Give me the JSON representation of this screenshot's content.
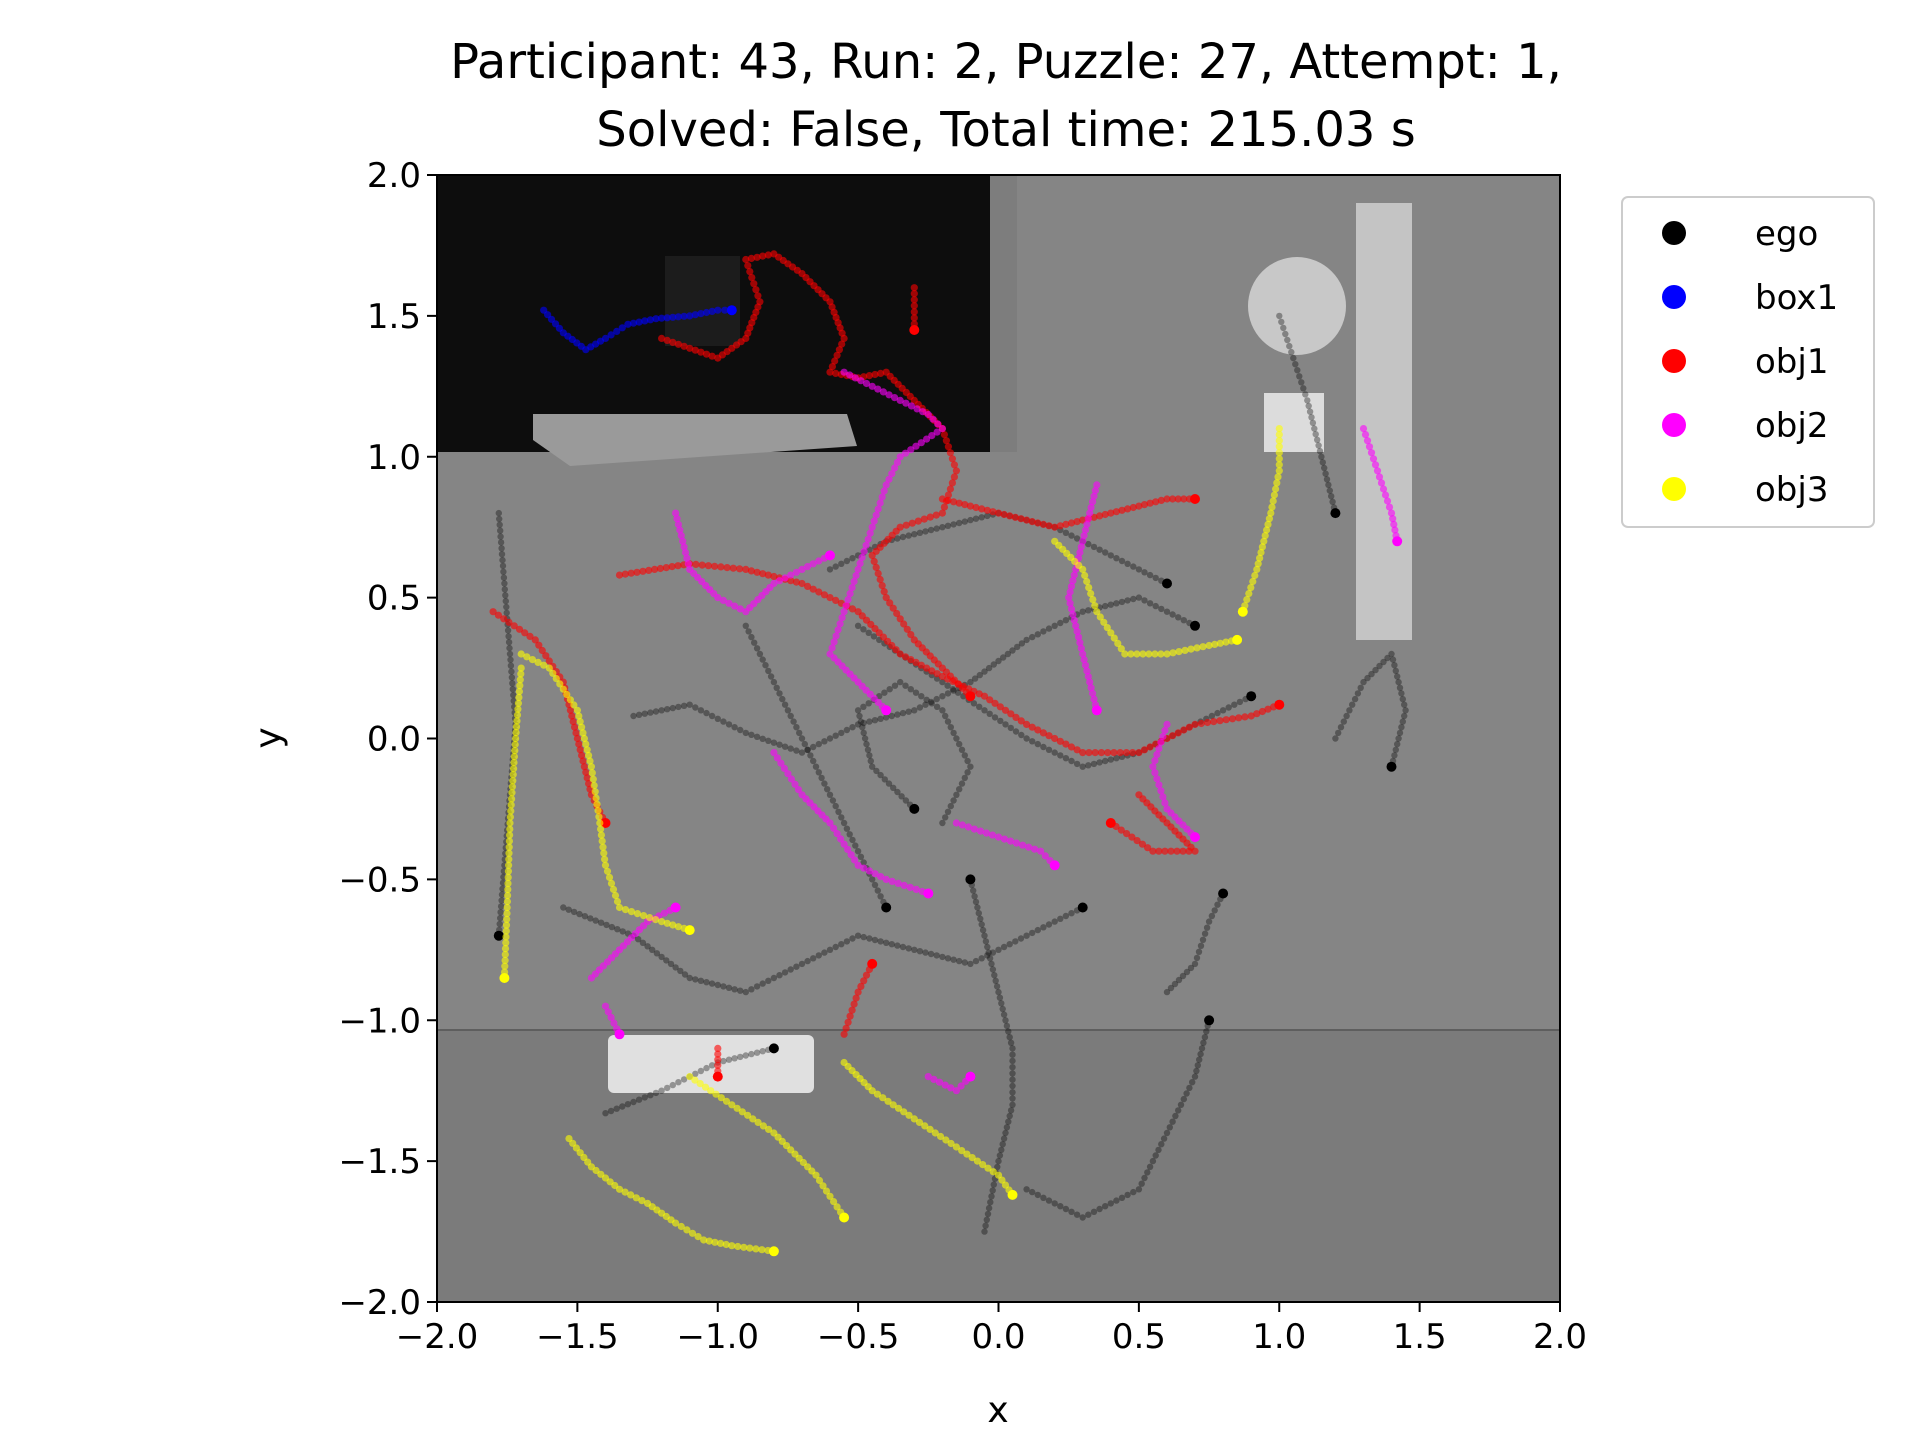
{
  "chart_data": {
    "type": "scatter",
    "title_line1": "Participant: 43, Run: 2, Puzzle: 27, Attempt: 1,",
    "title_line2": "Solved: False, Total time: 215.03 s",
    "xlabel": "x",
    "ylabel": "y",
    "xlim": [
      -2.0,
      2.0
    ],
    "ylim": [
      -2.0,
      2.0
    ],
    "x_ticks": [
      "−2.0",
      "−1.5",
      "−1.0",
      "−0.5",
      "0.0",
      "0.5",
      "1.0",
      "1.5",
      "2.0"
    ],
    "y_ticks": [
      "2.0",
      "1.5",
      "1.0",
      "0.5",
      "0.0",
      "−0.5",
      "−1.0",
      "−1.5",
      "−2.0"
    ],
    "legend": {
      "placement": "outside-top-right"
    },
    "series": [
      {
        "name": "ego",
        "color": "#000000",
        "paths": [
          [
            [
              -1.78,
              0.8
            ],
            [
              -1.76,
              0.55
            ],
            [
              -1.74,
              0.3
            ],
            [
              -1.72,
              0.05
            ],
            [
              -1.74,
              -0.2
            ],
            [
              -1.76,
              -0.45
            ],
            [
              -1.78,
              -0.7
            ]
          ],
          [
            [
              -1.3,
              0.08
            ],
            [
              -1.1,
              0.12
            ],
            [
              -0.9,
              0.02
            ],
            [
              -0.7,
              -0.05
            ],
            [
              -0.5,
              0.05
            ],
            [
              -0.3,
              0.1
            ],
            [
              -0.1,
              0.2
            ],
            [
              0.1,
              0.35
            ],
            [
              0.3,
              0.45
            ],
            [
              0.5,
              0.5
            ],
            [
              0.7,
              0.4
            ]
          ],
          [
            [
              -0.5,
              0.4
            ],
            [
              -0.35,
              0.3
            ],
            [
              -0.2,
              0.2
            ],
            [
              -0.05,
              0.1
            ],
            [
              0.1,
              0.0
            ],
            [
              0.3,
              -0.1
            ],
            [
              0.5,
              -0.05
            ],
            [
              0.7,
              0.05
            ],
            [
              0.9,
              0.15
            ]
          ],
          [
            [
              -1.55,
              -0.6
            ],
            [
              -1.3,
              -0.7
            ],
            [
              -1.1,
              -0.85
            ],
            [
              -0.9,
              -0.9
            ],
            [
              -0.7,
              -0.8
            ],
            [
              -0.5,
              -0.7
            ],
            [
              -0.3,
              -0.75
            ],
            [
              -0.1,
              -0.8
            ],
            [
              0.1,
              -0.7
            ],
            [
              0.3,
              -0.6
            ]
          ],
          [
            [
              -0.05,
              -1.75
            ],
            [
              0.0,
              -1.5
            ],
            [
              0.05,
              -1.3
            ],
            [
              0.05,
              -1.1
            ],
            [
              0.0,
              -0.9
            ],
            [
              -0.05,
              -0.7
            ],
            [
              -0.1,
              -0.5
            ]
          ],
          [
            [
              1.0,
              1.5
            ],
            [
              1.05,
              1.35
            ],
            [
              1.1,
              1.2
            ],
            [
              1.15,
              1.0
            ],
            [
              1.2,
              0.8
            ]
          ],
          [
            [
              0.6,
              -0.9
            ],
            [
              0.7,
              -0.8
            ],
            [
              0.75,
              -0.65
            ],
            [
              0.8,
              -0.55
            ]
          ],
          [
            [
              -1.4,
              -1.33
            ],
            [
              -1.2,
              -1.25
            ],
            [
              -1.0,
              -1.15
            ],
            [
              -0.8,
              -1.1
            ]
          ],
          [
            [
              -0.6,
              0.6
            ],
            [
              -0.4,
              0.7
            ],
            [
              -0.2,
              0.75
            ],
            [
              0.0,
              0.8
            ],
            [
              0.2,
              0.75
            ],
            [
              0.4,
              0.65
            ],
            [
              0.6,
              0.55
            ]
          ],
          [
            [
              -0.2,
              -0.3
            ],
            [
              -0.1,
              -0.1
            ],
            [
              -0.2,
              0.1
            ],
            [
              -0.35,
              0.2
            ],
            [
              -0.5,
              0.1
            ],
            [
              -0.45,
              -0.1
            ],
            [
              -0.3,
              -0.25
            ]
          ],
          [
            [
              1.2,
              0.0
            ],
            [
              1.3,
              0.2
            ],
            [
              1.4,
              0.3
            ],
            [
              1.45,
              0.1
            ],
            [
              1.4,
              -0.1
            ]
          ],
          [
            [
              0.1,
              -1.6
            ],
            [
              0.3,
              -1.7
            ],
            [
              0.5,
              -1.6
            ],
            [
              0.6,
              -1.4
            ],
            [
              0.7,
              -1.2
            ],
            [
              0.75,
              -1.0
            ]
          ],
          [
            [
              -0.9,
              0.4
            ],
            [
              -0.8,
              0.2
            ],
            [
              -0.7,
              0.0
            ],
            [
              -0.6,
              -0.2
            ],
            [
              -0.5,
              -0.4
            ],
            [
              -0.4,
              -0.6
            ]
          ]
        ]
      },
      {
        "name": "box1",
        "color": "#0000ff",
        "paths": [
          [
            [
              -1.62,
              1.52
            ],
            [
              -1.55,
              1.44
            ],
            [
              -1.47,
              1.38
            ],
            [
              -1.4,
              1.42
            ],
            [
              -1.32,
              1.47
            ],
            [
              -1.22,
              1.49
            ],
            [
              -1.1,
              1.5
            ],
            [
              -1.0,
              1.52
            ],
            [
              -0.95,
              1.52
            ]
          ]
        ]
      },
      {
        "name": "obj1",
        "color": "#ff0000",
        "paths": [
          [
            [
              -1.2,
              1.42
            ],
            [
              -1.0,
              1.35
            ],
            [
              -0.9,
              1.42
            ],
            [
              -0.85,
              1.55
            ],
            [
              -0.9,
              1.7
            ],
            [
              -0.8,
              1.72
            ],
            [
              -0.7,
              1.65
            ],
            [
              -0.6,
              1.55
            ],
            [
              -0.55,
              1.42
            ],
            [
              -0.6,
              1.3
            ],
            [
              -0.5,
              1.28
            ],
            [
              -0.4,
              1.3
            ],
            [
              -0.3,
              1.2
            ],
            [
              -0.2,
              1.1
            ],
            [
              -0.15,
              0.95
            ],
            [
              -0.2,
              0.8
            ],
            [
              -0.35,
              0.75
            ],
            [
              -0.45,
              0.65
            ],
            [
              -0.4,
              0.5
            ],
            [
              -0.3,
              0.35
            ],
            [
              -0.2,
              0.25
            ],
            [
              -0.1,
              0.15
            ]
          ],
          [
            [
              -1.8,
              0.45
            ],
            [
              -1.65,
              0.35
            ],
            [
              -1.55,
              0.2
            ],
            [
              -1.5,
              0.0
            ],
            [
              -1.45,
              -0.2
            ],
            [
              -1.4,
              -0.3
            ]
          ],
          [
            [
              -1.35,
              0.58
            ],
            [
              -1.1,
              0.62
            ],
            [
              -0.9,
              0.6
            ],
            [
              -0.7,
              0.55
            ],
            [
              -0.5,
              0.45
            ],
            [
              -0.35,
              0.3
            ],
            [
              -0.2,
              0.22
            ],
            [
              -0.05,
              0.15
            ],
            [
              0.1,
              0.05
            ],
            [
              0.3,
              -0.05
            ],
            [
              0.5,
              -0.05
            ],
            [
              0.7,
              0.05
            ],
            [
              0.9,
              0.08
            ],
            [
              1.0,
              0.12
            ]
          ],
          [
            [
              0.5,
              -0.2
            ],
            [
              0.6,
              -0.3
            ],
            [
              0.7,
              -0.4
            ],
            [
              0.55,
              -0.4
            ],
            [
              0.4,
              -0.3
            ]
          ],
          [
            [
              -0.55,
              -1.05
            ],
            [
              -0.5,
              -0.9
            ],
            [
              -0.45,
              -0.8
            ]
          ],
          [
            [
              -1.0,
              -1.1
            ],
            [
              -1.0,
              -1.2
            ]
          ],
          [
            [
              -0.2,
              0.85
            ],
            [
              0.0,
              0.8
            ],
            [
              0.2,
              0.75
            ],
            [
              0.4,
              0.8
            ],
            [
              0.6,
              0.85
            ],
            [
              0.7,
              0.85
            ]
          ],
          [
            [
              -0.3,
              1.6
            ],
            [
              -0.3,
              1.45
            ]
          ]
        ]
      },
      {
        "name": "obj2",
        "color": "#ff00ff",
        "paths": [
          [
            [
              -0.55,
              1.3
            ],
            [
              -0.45,
              1.25
            ],
            [
              -0.35,
              1.2
            ],
            [
              -0.25,
              1.15
            ],
            [
              -0.2,
              1.1
            ],
            [
              -0.35,
              1.0
            ],
            [
              -0.4,
              0.9
            ],
            [
              -0.45,
              0.75
            ],
            [
              -0.5,
              0.6
            ],
            [
              -0.55,
              0.45
            ],
            [
              -0.6,
              0.3
            ],
            [
              -0.5,
              0.2
            ],
            [
              -0.4,
              0.1
            ]
          ],
          [
            [
              -1.15,
              0.8
            ],
            [
              -1.1,
              0.6
            ],
            [
              -1.0,
              0.5
            ],
            [
              -0.9,
              0.45
            ],
            [
              -0.8,
              0.55
            ],
            [
              -0.7,
              0.6
            ],
            [
              -0.6,
              0.65
            ]
          ],
          [
            [
              -0.8,
              -0.05
            ],
            [
              -0.7,
              -0.2
            ],
            [
              -0.6,
              -0.3
            ],
            [
              -0.5,
              -0.45
            ],
            [
              -0.4,
              -0.5
            ],
            [
              -0.25,
              -0.55
            ]
          ],
          [
            [
              -0.15,
              -0.3
            ],
            [
              0.0,
              -0.35
            ],
            [
              0.15,
              -0.4
            ],
            [
              0.2,
              -0.45
            ]
          ],
          [
            [
              0.35,
              0.9
            ],
            [
              0.3,
              0.7
            ],
            [
              0.25,
              0.5
            ],
            [
              0.3,
              0.3
            ],
            [
              0.35,
              0.1
            ]
          ],
          [
            [
              0.6,
              0.05
            ],
            [
              0.55,
              -0.1
            ],
            [
              0.6,
              -0.25
            ],
            [
              0.7,
              -0.35
            ]
          ],
          [
            [
              -1.45,
              -0.85
            ],
            [
              -1.35,
              -0.75
            ],
            [
              -1.25,
              -0.65
            ],
            [
              -1.15,
              -0.6
            ]
          ],
          [
            [
              -0.25,
              -1.2
            ],
            [
              -0.15,
              -1.25
            ],
            [
              -0.1,
              -1.2
            ]
          ],
          [
            [
              -1.4,
              -0.95
            ],
            [
              -1.35,
              -1.05
            ]
          ],
          [
            [
              1.3,
              1.1
            ],
            [
              1.35,
              0.95
            ],
            [
              1.4,
              0.8
            ],
            [
              1.42,
              0.7
            ]
          ]
        ]
      },
      {
        "name": "obj3",
        "color": "#ffff00",
        "paths": [
          [
            [
              -1.53,
              -1.42
            ],
            [
              -1.45,
              -1.52
            ],
            [
              -1.35,
              -1.6
            ],
            [
              -1.25,
              -1.65
            ],
            [
              -1.15,
              -1.72
            ],
            [
              -1.05,
              -1.78
            ],
            [
              -0.95,
              -1.8
            ],
            [
              -0.8,
              -1.82
            ]
          ],
          [
            [
              -0.55,
              -1.15
            ],
            [
              -0.45,
              -1.25
            ],
            [
              -0.3,
              -1.35
            ],
            [
              -0.15,
              -1.45
            ],
            [
              0.0,
              -1.55
            ],
            [
              0.05,
              -1.62
            ]
          ],
          [
            [
              -1.7,
              0.3
            ],
            [
              -1.6,
              0.25
            ],
            [
              -1.5,
              0.1
            ],
            [
              -1.45,
              -0.1
            ],
            [
              -1.42,
              -0.3
            ],
            [
              -1.4,
              -0.45
            ],
            [
              -1.35,
              -0.6
            ],
            [
              -1.2,
              -0.65
            ],
            [
              -1.1,
              -0.68
            ]
          ],
          [
            [
              -1.7,
              0.25
            ],
            [
              -1.72,
              0.0
            ],
            [
              -1.74,
              -0.3
            ],
            [
              -1.75,
              -0.6
            ],
            [
              -1.76,
              -0.85
            ]
          ],
          [
            [
              0.2,
              0.7
            ],
            [
              0.3,
              0.6
            ],
            [
              0.35,
              0.45
            ],
            [
              0.45,
              0.3
            ],
            [
              0.6,
              0.3
            ],
            [
              0.75,
              0.33
            ],
            [
              0.85,
              0.35
            ]
          ],
          [
            [
              1.0,
              1.1
            ],
            [
              1.0,
              0.95
            ],
            [
              0.97,
              0.8
            ],
            [
              0.92,
              0.6
            ],
            [
              0.87,
              0.45
            ]
          ],
          [
            [
              -1.1,
              -1.2
            ],
            [
              -0.95,
              -1.3
            ],
            [
              -0.8,
              -1.4
            ],
            [
              -0.65,
              -1.55
            ],
            [
              -0.55,
              -1.7
            ]
          ]
        ]
      }
    ]
  },
  "scene": {
    "back_room_color": "#0d0d0d",
    "floor_color": "#808080",
    "front_strip_color": "#7a7a7a"
  }
}
